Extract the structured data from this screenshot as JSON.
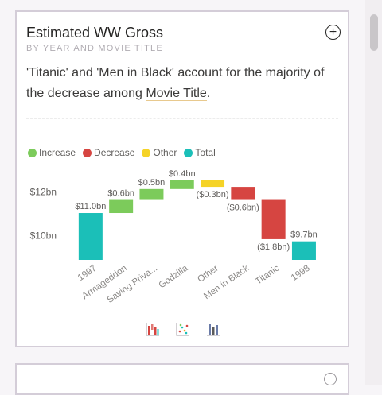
{
  "card": {
    "title": "Estimated WW Gross",
    "subtitle": "BY YEAR AND MOVIE TITLE",
    "insight_text": "'Titanic' and 'Men in Black' account for the majority of the decrease among ",
    "insight_link": "Movie Title",
    "insight_end": "."
  },
  "icons": {
    "add": "plus-circle-icon",
    "waterfall": "waterfall-chart-icon",
    "scatter": "scatter-chart-icon",
    "column": "column-chart-icon"
  },
  "chart_data": {
    "type": "bar",
    "subtype": "waterfall",
    "categories": [
      "1997",
      "Armageddon",
      "Saving Priva...",
      "Godzilla",
      "Other",
      "Men in Black",
      "Titanic",
      "1998"
    ],
    "values": [
      11.0,
      0.6,
      0.5,
      0.4,
      -0.3,
      -0.6,
      -1.8,
      9.7
    ],
    "kinds": [
      "total",
      "increase",
      "increase",
      "increase",
      "decrease",
      "decrease",
      "decrease",
      "total"
    ],
    "data_labels": [
      "$11.0bn",
      "$0.6bn",
      "$0.5bn",
      "$0.4bn",
      "($0.3bn)",
      "($0.6bn)",
      "($1.8bn)",
      "$9.7bn"
    ],
    "legend": [
      "Increase",
      "Decrease",
      "Other",
      "Total"
    ],
    "legend_colors": [
      "#7ccb5b",
      "#d64541",
      "#f5d327",
      "#1bbfb8"
    ],
    "bar_colors": [
      "#1bbfb8",
      "#7ccb5b",
      "#7ccb5b",
      "#7ccb5b",
      "#f5d327",
      "#d64541",
      "#d64541",
      "#1bbfb8"
    ],
    "y_ticks": [
      10,
      12
    ],
    "y_tick_labels": [
      "$10bn",
      "$12bn"
    ],
    "ylim": [
      8.85,
      12.75
    ],
    "legend_position": "top-left",
    "grid": false
  }
}
